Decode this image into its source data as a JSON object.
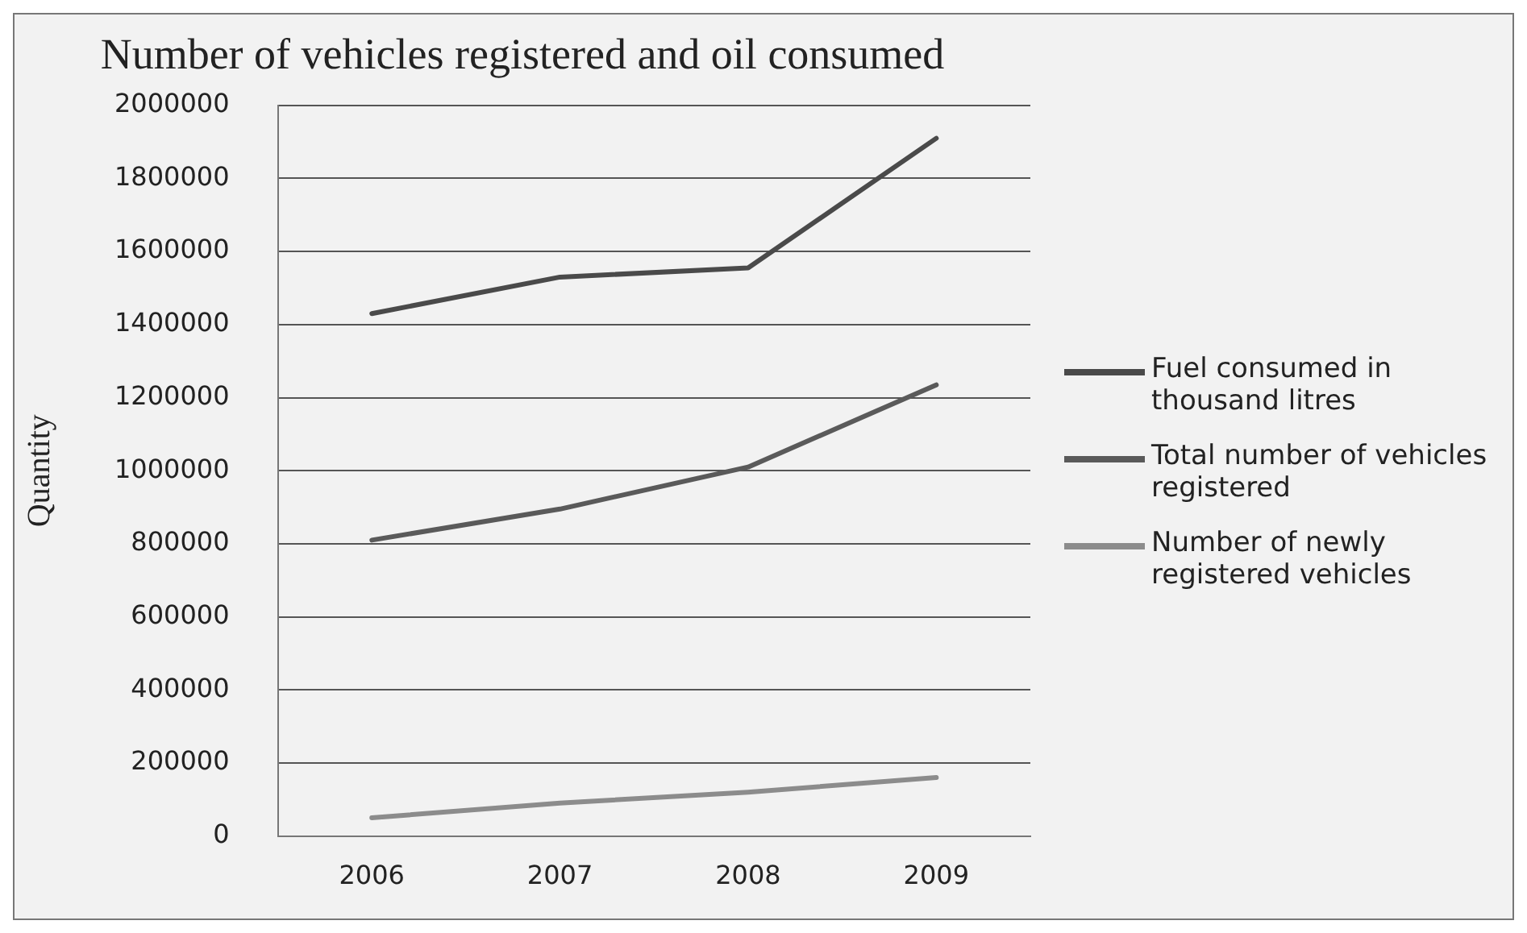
{
  "chart_data": {
    "type": "line",
    "title": "Number of vehicles registered and oil consumed",
    "ylabel": "Quantity",
    "categories": [
      "2006",
      "2007",
      "2008",
      "2009"
    ],
    "series": [
      {
        "name": "Fuel consumed  in thousand litres",
        "color": "#4a4a4a",
        "values": [
          1430000,
          1530000,
          1555000,
          1910000
        ]
      },
      {
        "name": "Total number of vehicles registered",
        "color": "#5a5a5a",
        "values": [
          810000,
          895000,
          1010000,
          1235000
        ]
      },
      {
        "name": "Number of newly registered vehicles",
        "color": "#8c8c8c",
        "values": [
          50000,
          90000,
          120000,
          160000
        ]
      }
    ],
    "ylim": [
      0,
      2000000
    ],
    "yticks": [
      0,
      200000,
      400000,
      600000,
      800000,
      1000000,
      1200000,
      1400000,
      1600000,
      1800000,
      2000000
    ],
    "grid": "y",
    "legend": "right",
    "marker": "none"
  }
}
